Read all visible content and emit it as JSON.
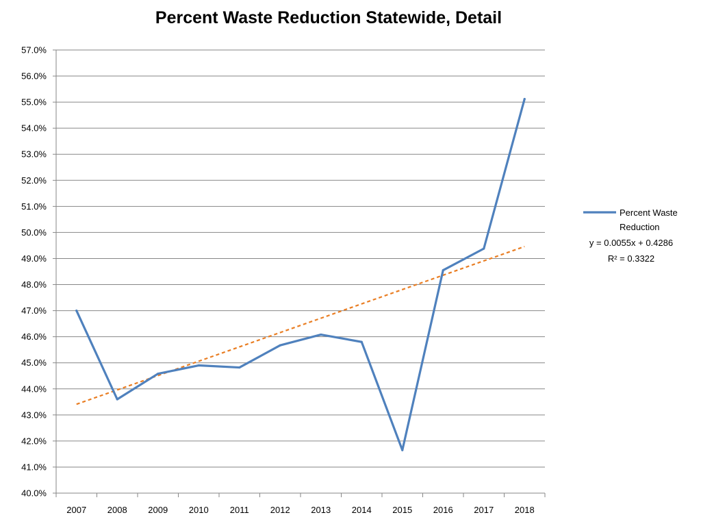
{
  "chart_data": {
    "type": "line",
    "title": "Percent Waste Reduction Statewide, Detail",
    "xlabel": "",
    "ylabel": "",
    "categories": [
      "2007",
      "2008",
      "2009",
      "2010",
      "2011",
      "2012",
      "2013",
      "2014",
      "2015",
      "2016",
      "2017",
      "2018"
    ],
    "ylim": [
      0.4,
      0.57
    ],
    "y_tick_step": 0.01,
    "y_tick_format": "percent_1dp",
    "grid": true,
    "legend_position": "right",
    "series": [
      {
        "name": "Percent Waste Reduction",
        "name_lines": [
          "Percent Waste",
          "Reduction"
        ],
        "color": "#4F81BD",
        "values": [
          0.47,
          0.436,
          0.4458,
          0.449,
          0.4482,
          0.4567,
          0.4608,
          0.458,
          0.4165,
          0.4855,
          0.4938,
          0.5512
        ]
      }
    ],
    "trendline": {
      "type": "linear",
      "color": "#E97D22",
      "slope": 0.0055,
      "intercept": 0.4286,
      "equation": "y = 0.0055x + 0.4286",
      "r_squared": "R² = 0.3322"
    }
  }
}
